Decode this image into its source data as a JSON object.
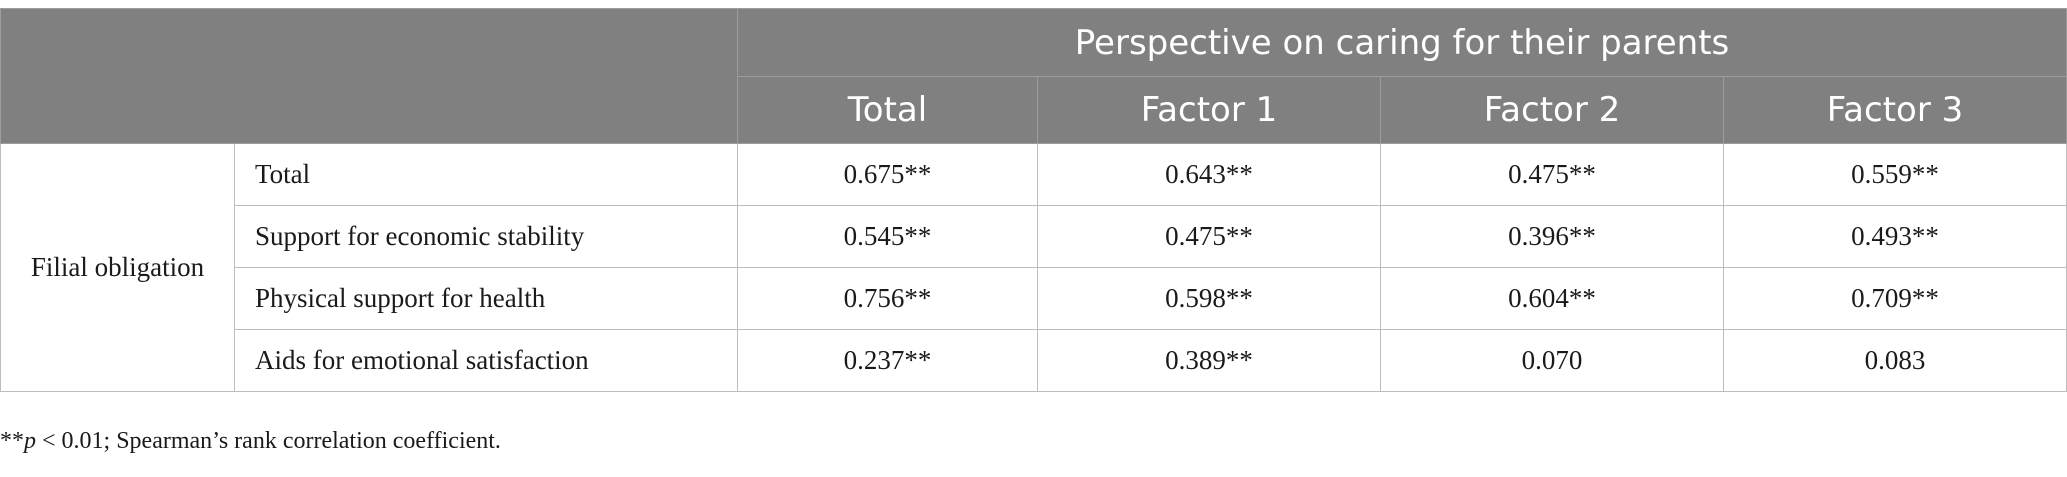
{
  "header": {
    "group_title": "Perspective on caring for their parents",
    "columns": [
      "Total",
      "Factor 1",
      "Factor 2",
      "Factor 3"
    ]
  },
  "row_group": "Filial obligation",
  "rows": [
    {
      "label": "Total",
      "values": [
        "0.675**",
        "0.643**",
        "0.475**",
        "0.559**"
      ]
    },
    {
      "label": "Support for economic stability",
      "values": [
        "0.545**",
        "0.475**",
        "0.396**",
        "0.493**"
      ]
    },
    {
      "label": "Physical support for health",
      "values": [
        "0.756**",
        "0.598**",
        "0.604**",
        "0.709**"
      ]
    },
    {
      "label": "Aids for emotional satisfaction",
      "values": [
        "0.237**",
        "0.389**",
        "0.070",
        "0.083"
      ]
    }
  ],
  "footnote": {
    "prefix": "**",
    "var": "p",
    "rest": " < 0.01; Spearman’s rank correlation coefficient."
  }
}
